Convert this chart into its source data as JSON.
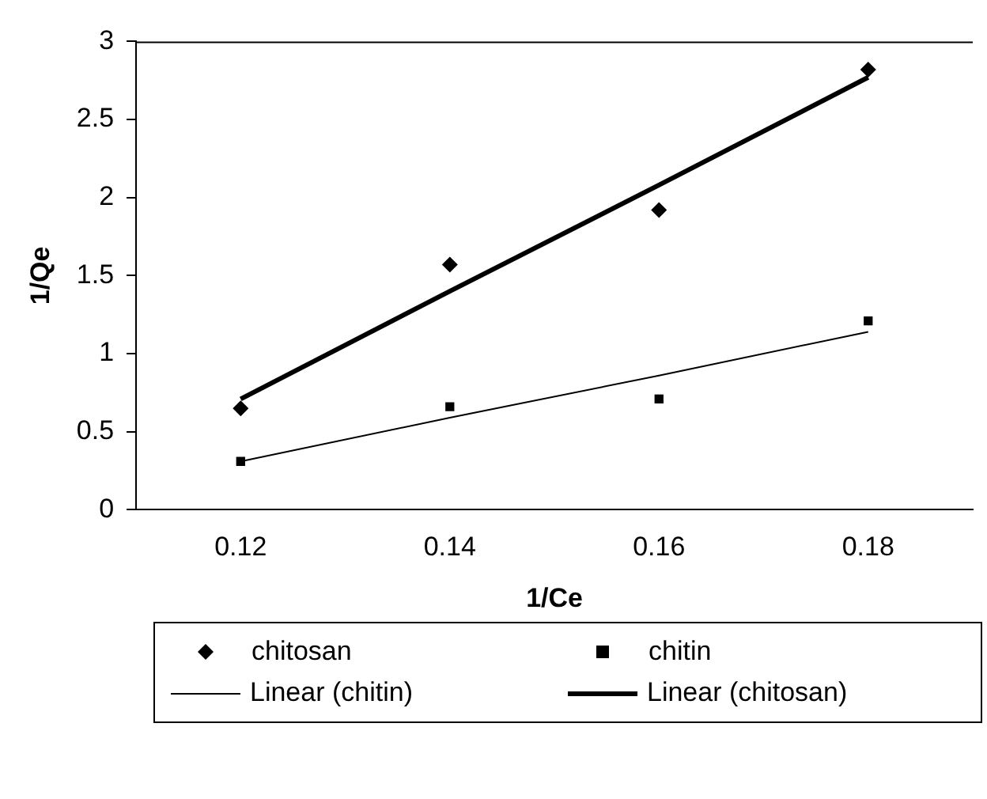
{
  "chart_data": {
    "type": "scatter",
    "xlabel": "1/Ce",
    "ylabel": "1/Qe",
    "categories": [
      "0.12",
      "0.14",
      "0.16",
      "0.18"
    ],
    "ylim": [
      0,
      3
    ],
    "yticks": [
      0,
      0.5,
      1,
      1.5,
      2,
      2.5,
      3
    ],
    "grid": false,
    "legend": "bottom",
    "series": [
      {
        "name": "chitosan",
        "marker": "diamond",
        "color": "#000000",
        "values": [
          0.65,
          1.57,
          1.92,
          2.82
        ]
      },
      {
        "name": "chitin",
        "marker": "square",
        "color": "#000000",
        "values": [
          0.31,
          0.66,
          0.71,
          1.21
        ]
      },
      {
        "name": "Linear (chitin)",
        "type": "line",
        "marker": "none",
        "line_style": "solid",
        "color": "#000000",
        "values": [
          0.31,
          0.59,
          0.86,
          1.14
        ]
      },
      {
        "name": "Linear (chitosan)",
        "type": "line",
        "marker": "none",
        "line_style": "solid",
        "color": "#000000",
        "values": [
          0.71,
          1.4,
          2.08,
          2.77
        ]
      }
    ]
  }
}
